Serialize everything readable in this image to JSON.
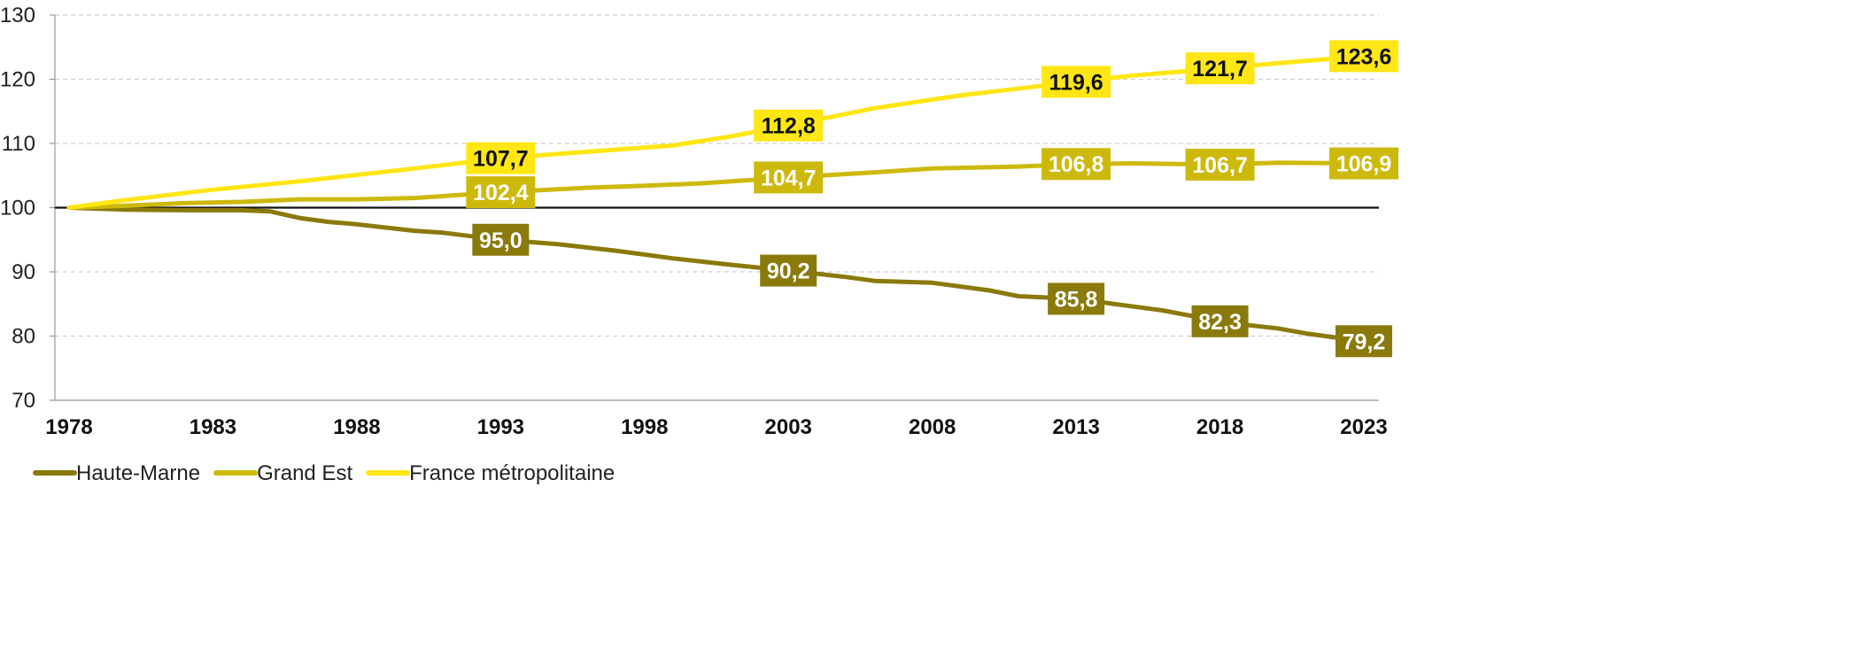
{
  "chart_data": {
    "type": "line",
    "title": "",
    "xlabel": "",
    "ylabel": "",
    "xlim": [
      1978,
      2023
    ],
    "ylim": [
      70,
      130
    ],
    "y_ticks": [
      70,
      80,
      90,
      100,
      110,
      120,
      130
    ],
    "x_ticks": [
      1978,
      1983,
      1988,
      1993,
      1998,
      2003,
      2008,
      2013,
      2018,
      2023
    ],
    "grid": "horizontal dashed",
    "reference_line": 100,
    "legend_position": "bottom-left",
    "series": [
      {
        "name": "Haute-Marne",
        "color": "#8a7a0c",
        "label_text_color": "#ffffff",
        "x": [
          1978,
          1980,
          1982,
          1984,
          1985,
          1986,
          1987,
          1988,
          1990,
          1991,
          1993,
          1995,
          1997,
          1999,
          2001,
          2003,
          2005,
          2006,
          2008,
          2010,
          2011,
          2012,
          2013,
          2015,
          2016,
          2018,
          2019,
          2020,
          2021,
          2022,
          2023
        ],
        "y": [
          100,
          99.7,
          99.6,
          99.6,
          99.4,
          98.4,
          97.8,
          97.4,
          96.4,
          96.1,
          95.0,
          94.3,
          93.3,
          92.1,
          91.1,
          90.2,
          89.2,
          88.6,
          88.3,
          87.1,
          86.2,
          86.0,
          85.8,
          84.6,
          84.0,
          82.3,
          81.7,
          81.2,
          80.4,
          79.8,
          79.2
        ],
        "labels": [
          {
            "x": 1993,
            "y": 95.0,
            "text": "95,0"
          },
          {
            "x": 2003,
            "y": 90.2,
            "text": "90,2"
          },
          {
            "x": 2013,
            "y": 85.8,
            "text": "85,8"
          },
          {
            "x": 2018,
            "y": 82.3,
            "text": "82,3"
          },
          {
            "x": 2023,
            "y": 79.2,
            "text": "79,2"
          }
        ]
      },
      {
        "name": "Grand Est",
        "color": "#cdb90c",
        "label_text_color": "#ffffff",
        "x": [
          1978,
          1980,
          1982,
          1984,
          1986,
          1988,
          1990,
          1993,
          1996,
          1998,
          2000,
          2003,
          2006,
          2008,
          2011,
          2013,
          2015,
          2018,
          2020,
          2023
        ],
        "y": [
          100,
          100.3,
          100.7,
          100.9,
          101.3,
          101.3,
          101.5,
          102.4,
          103.1,
          103.4,
          103.8,
          104.7,
          105.5,
          106.1,
          106.4,
          106.8,
          106.9,
          106.7,
          107.0,
          106.9
        ],
        "labels": [
          {
            "x": 1993,
            "y": 102.4,
            "text": "102,4"
          },
          {
            "x": 2003,
            "y": 104.7,
            "text": "104,7"
          },
          {
            "x": 2013,
            "y": 106.8,
            "text": "106,8"
          },
          {
            "x": 2018,
            "y": 106.7,
            "text": "106,7"
          },
          {
            "x": 2023,
            "y": 106.9,
            "text": "106,9"
          }
        ]
      },
      {
        "name": "France métropolitaine",
        "color": "#ffe614",
        "label_text_color": "#111111",
        "x": [
          1978,
          1980,
          1983,
          1986,
          1988,
          1990,
          1993,
          1996,
          1999,
          2001,
          2003,
          2006,
          2009,
          2013,
          2015,
          2018,
          2020,
          2023
        ],
        "y": [
          100,
          101.2,
          102.8,
          104.1,
          105.1,
          106.1,
          107.7,
          108.7,
          109.7,
          111.1,
          112.8,
          115.5,
          117.5,
          119.6,
          120.6,
          121.7,
          122.5,
          123.6
        ],
        "labels": [
          {
            "x": 1993,
            "y": 107.7,
            "text": "107,7"
          },
          {
            "x": 2003,
            "y": 112.8,
            "text": "112,8"
          },
          {
            "x": 2013,
            "y": 119.6,
            "text": "119,6"
          },
          {
            "x": 2018,
            "y": 121.7,
            "text": "121,7"
          },
          {
            "x": 2023,
            "y": 123.6,
            "text": "123,6"
          }
        ]
      }
    ]
  }
}
